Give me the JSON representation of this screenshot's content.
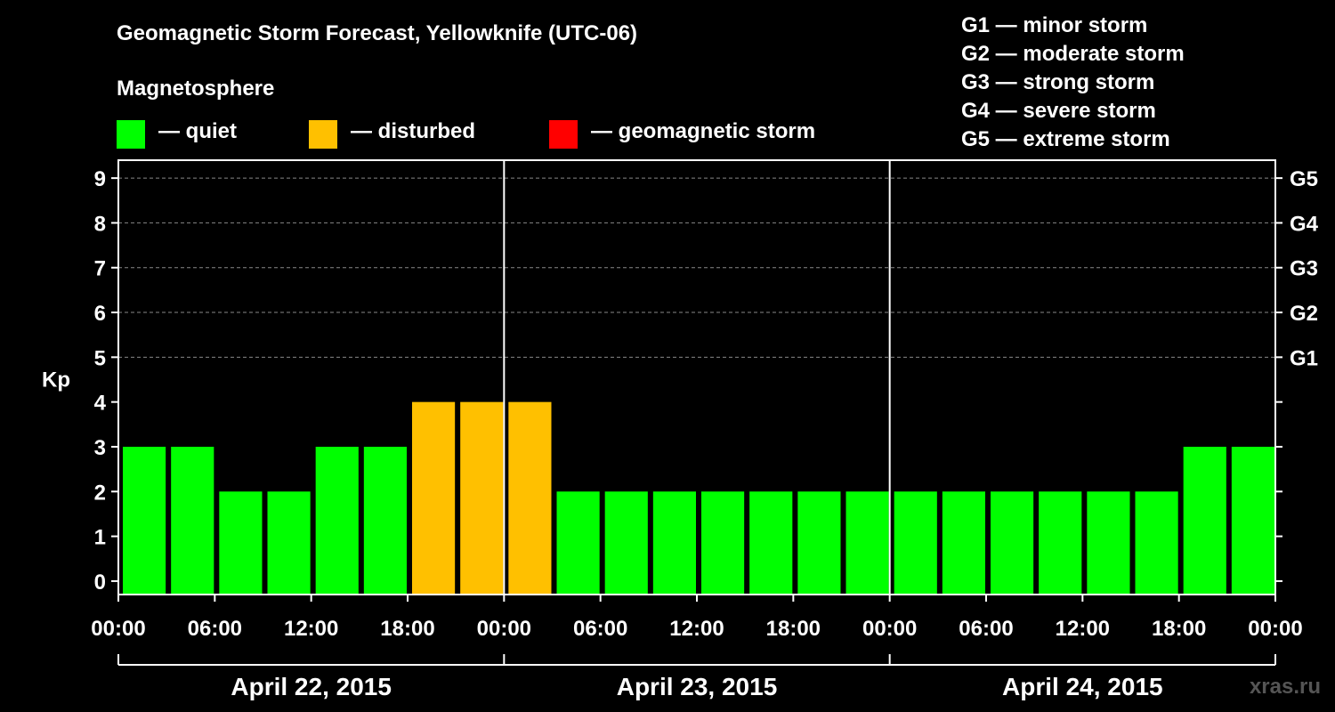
{
  "title": "Geomagnetic Storm Forecast, Yellowknife (UTC-06)",
  "magnetosphere": {
    "heading": "Magnetosphere",
    "legend": [
      {
        "label": "— quiet",
        "color": "#00ff00"
      },
      {
        "label": "— disturbed",
        "color": "#ffc000"
      },
      {
        "label": "— geomagnetic storm",
        "color": "#ff0000"
      }
    ]
  },
  "storm_levels": [
    "G1 — minor storm",
    "G2 — moderate storm",
    "G3 — strong storm",
    "G4 — severe storm",
    "G5 — extreme storm"
  ],
  "watermark": "xras.ru",
  "chart_data": {
    "type": "bar",
    "title": "Geomagnetic Storm Forecast, Yellowknife (UTC-06)",
    "ylabel": "Kp",
    "xlabel": "",
    "ylim": [
      -0.3,
      9.4
    ],
    "yticks": [
      0,
      1,
      2,
      3,
      4,
      5,
      6,
      7,
      8,
      9
    ],
    "right_axis_labels": [
      {
        "kp": 5,
        "label": "G1"
      },
      {
        "kp": 6,
        "label": "G2"
      },
      {
        "kp": 7,
        "label": "G3"
      },
      {
        "kp": 8,
        "label": "G4"
      },
      {
        "kp": 9,
        "label": "G5"
      }
    ],
    "grid": "dashed horizontal at Kp 5-9",
    "hours_per_bar": 3,
    "xtick_labels": [
      "00:00",
      "06:00",
      "12:00",
      "18:00",
      "00:00",
      "06:00",
      "12:00",
      "18:00",
      "00:00",
      "06:00",
      "12:00",
      "18:00",
      "00:00"
    ],
    "days": [
      "April 22, 2015",
      "April 23, 2015",
      "April 24, 2015"
    ],
    "categories": [
      "Apr 22 00-03",
      "Apr 22 03-06",
      "Apr 22 06-09",
      "Apr 22 09-12",
      "Apr 22 12-15",
      "Apr 22 15-18",
      "Apr 22 18-21",
      "Apr 22 21-24",
      "Apr 23 00-03",
      "Apr 23 03-06",
      "Apr 23 06-09",
      "Apr 23 09-12",
      "Apr 23 12-15",
      "Apr 23 15-18",
      "Apr 23 18-21",
      "Apr 23 21-24",
      "Apr 24 00-03",
      "Apr 24 03-06",
      "Apr 24 06-09",
      "Apr 24 09-12",
      "Apr 24 12-15",
      "Apr 24 15-18",
      "Apr 24 18-21",
      "Apr 24 21-24"
    ],
    "values": [
      3,
      3,
      2,
      2,
      3,
      3,
      4,
      4,
      4,
      2,
      2,
      2,
      2,
      2,
      2,
      2,
      2,
      2,
      2,
      2,
      2,
      2,
      3,
      3
    ],
    "status": [
      "quiet",
      "quiet",
      "quiet",
      "quiet",
      "quiet",
      "quiet",
      "disturbed",
      "disturbed",
      "disturbed",
      "quiet",
      "quiet",
      "quiet",
      "quiet",
      "quiet",
      "quiet",
      "quiet",
      "quiet",
      "quiet",
      "quiet",
      "quiet",
      "quiet",
      "quiet",
      "quiet",
      "quiet"
    ],
    "colors": {
      "quiet": "#00ff00",
      "disturbed": "#ffc000",
      "storm": "#ff0000"
    }
  }
}
